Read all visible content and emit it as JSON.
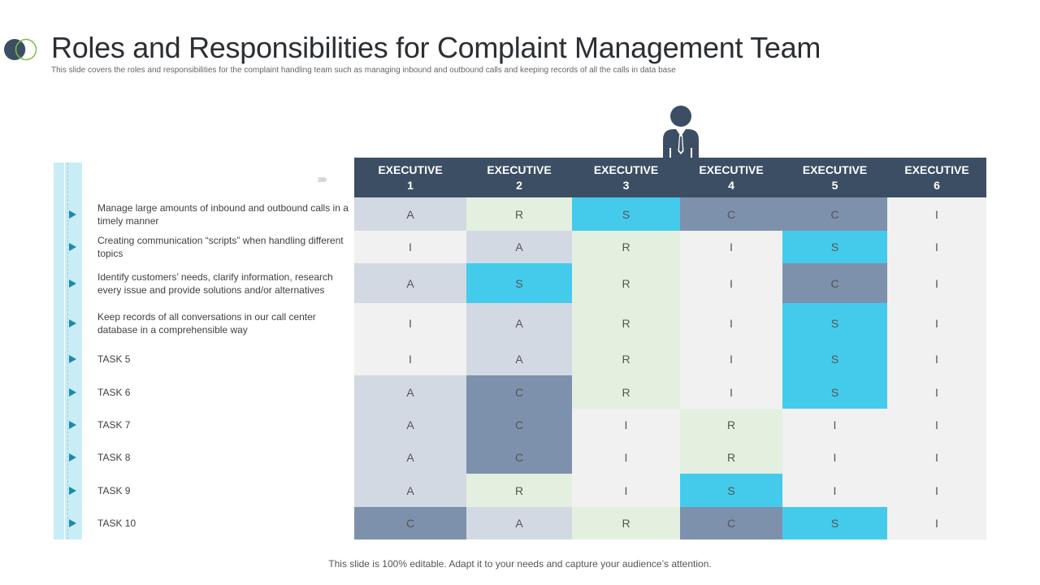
{
  "header": {
    "title": "Roles and Responsibilities for Complaint Management Team",
    "subtitle": "This slide covers the roles and responsibilities  for the complaint handling team such as managing inbound and outbound calls and  keeping records of all the calls  in data base"
  },
  "chevron_text": "›››››",
  "colors": {
    "header_bg": "#3c4e64",
    "A": "#d3d9e3",
    "R": "#e3efdf",
    "S": "#44cbec",
    "C": "#7d91ad",
    "I": "#f1f1f1"
  },
  "icons": {
    "logo": "overlapping-circles-icon",
    "person": "executive-person-icon",
    "arrow": "triangle-right-icon"
  },
  "executives": [
    {
      "line1": "EXECUTIVE",
      "line2": "1"
    },
    {
      "line1": "EXECUTIVE",
      "line2": "2"
    },
    {
      "line1": "EXECUTIVE",
      "line2": "3"
    },
    {
      "line1": "EXECUTIVE",
      "line2": "4"
    },
    {
      "line1": "EXECUTIVE",
      "line2": "5"
    },
    {
      "line1": "EXECUTIVE",
      "line2": "6"
    }
  ],
  "tasks": [
    {
      "label": "Manage large amounts of inbound and outbound calls in a timely manner",
      "roles": [
        "A",
        "R",
        "S",
        "C",
        "C",
        "I"
      ]
    },
    {
      "label": "Creating  communication “scripts” when handling different topics",
      "roles": [
        "I",
        "A",
        "R",
        "I",
        "S",
        "I"
      ]
    },
    {
      "label": "Identify customers’ needs, clarify information, research every issue and provide solutions and/or alternatives",
      "roles": [
        "A",
        "S",
        "R",
        "I",
        "C",
        "I"
      ]
    },
    {
      "label": "Keep records of all conversations in our call center database in a comprehensible way",
      "roles": [
        "I",
        "A",
        "R",
        "I",
        "S",
        "I"
      ]
    },
    {
      "label": "TASK 5",
      "roles": [
        "I",
        "A",
        "R",
        "I",
        "S",
        "I"
      ]
    },
    {
      "label": "TASK 6",
      "roles": [
        "A",
        "C",
        "R",
        "I",
        "S",
        "I"
      ]
    },
    {
      "label": "TASK 7",
      "roles": [
        "A",
        "C",
        "I",
        "R",
        "I",
        "I"
      ]
    },
    {
      "label": "TASK 8",
      "roles": [
        "A",
        "C",
        "I",
        "R",
        "I",
        "I"
      ]
    },
    {
      "label": "TASK 9",
      "roles": [
        "A",
        "R",
        "I",
        "S",
        "I",
        "I"
      ]
    },
    {
      "label": "TASK 10",
      "roles": [
        "C",
        "A",
        "R",
        "C",
        "S",
        "I"
      ]
    }
  ],
  "footer": {
    "text": "This slide is 100% editable. Adapt it to your needs and capture your audience’s attention."
  }
}
